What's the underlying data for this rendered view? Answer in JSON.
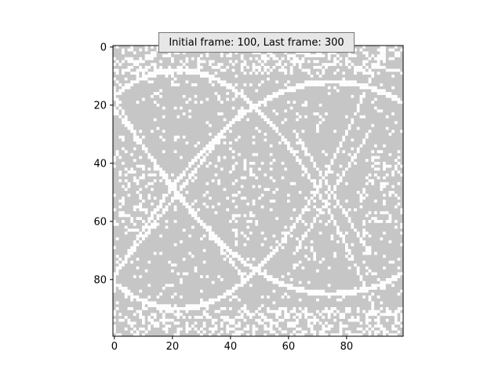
{
  "chart_data": {
    "type": "heatmap",
    "title": "Initial frame: 100, Last frame: 300",
    "rows": 100,
    "cols": 100,
    "colors": {
      "background": "#c6c6c6",
      "foreground": "#ffffff"
    },
    "x_ticks": [
      "0",
      "20",
      "40",
      "60",
      "80"
    ],
    "y_ticks": [
      "0",
      "20",
      "40",
      "60",
      "80"
    ],
    "xlim": [
      -0.5,
      99.5
    ],
    "ylim": [
      99.5,
      -0.5
    ],
    "grid": false,
    "description_of_values": "binary image (gray/white cells)"
  }
}
